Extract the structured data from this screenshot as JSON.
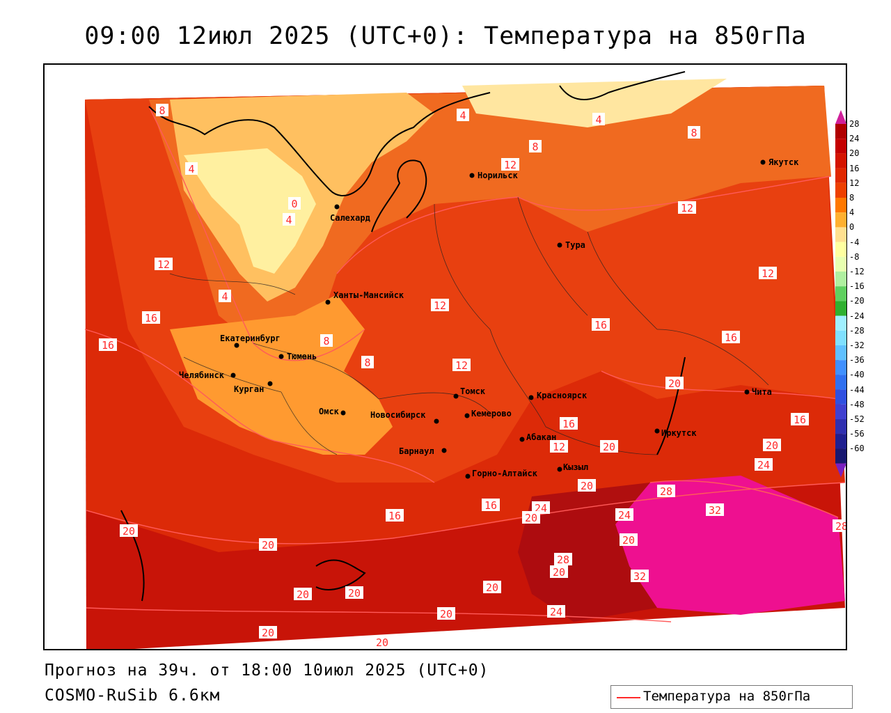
{
  "title": "09:00 12июл 2025 (UTC+0): Температура на 850гПа",
  "footer": {
    "forecast": "Прогноз на 39ч. от 18:00 10июл 2025 (UTC+0)",
    "model": "COSMO-RuSib 6.6км"
  },
  "legend": {
    "label": "Температура на 850гПа",
    "line_color": "#ff2a2a"
  },
  "colorbar": {
    "ticks": [
      "28",
      "24",
      "20",
      "16",
      "12",
      "8",
      "4",
      "0",
      "-4",
      "-8",
      "-12",
      "-16",
      "-20",
      "-24",
      "-28",
      "-32",
      "-36",
      "-40",
      "-44",
      "-48",
      "-52",
      "-56",
      "-60"
    ],
    "colors": [
      "#b00000",
      "#c40000",
      "#d41400",
      "#e02800",
      "#ee4000",
      "#ff7800",
      "#ffb030",
      "#ffe090",
      "#ffffa0",
      "#e8ffb0",
      "#b0f0a0",
      "#60d060",
      "#30b030",
      "#a0f0ff",
      "#80e0ff",
      "#60c0ff",
      "#4090ff",
      "#3070f0",
      "#3050e0",
      "#4040d0",
      "#3030b0",
      "#202090",
      "#181870"
    ]
  },
  "cities": [
    {
      "name": "Норильск"
    },
    {
      "name": "Якутск"
    },
    {
      "name": "Салехард"
    },
    {
      "name": "Тура"
    },
    {
      "name": "Ханты-Мансийск"
    },
    {
      "name": "Екатеринбург"
    },
    {
      "name": "Тюмень"
    },
    {
      "name": "Челябинск"
    },
    {
      "name": "Курган"
    },
    {
      "name": "Омск"
    },
    {
      "name": "Новосибирск"
    },
    {
      "name": "Томск"
    },
    {
      "name": "Кемерово"
    },
    {
      "name": "Красноярск"
    },
    {
      "name": "Абакан"
    },
    {
      "name": "Барнаул"
    },
    {
      "name": "Горно-Алтайск"
    },
    {
      "name": "Кызыл"
    },
    {
      "name": "Иркутск"
    },
    {
      "name": "Чита"
    }
  ],
  "contour_labels": [
    "8",
    "4",
    "8",
    "4",
    "8",
    "12",
    "4",
    "0",
    "4",
    "12",
    "12",
    "16",
    "12",
    "4",
    "8",
    "16",
    "8",
    "12",
    "16",
    "20",
    "12",
    "16",
    "16",
    "16",
    "20",
    "20",
    "20",
    "24",
    "12",
    "28",
    "32",
    "24",
    "20",
    "16",
    "16",
    "24",
    "20",
    "20",
    "28",
    "20",
    "32",
    "20",
    "20",
    "20",
    "20",
    "20",
    "24",
    "20",
    "20",
    "28"
  ]
}
